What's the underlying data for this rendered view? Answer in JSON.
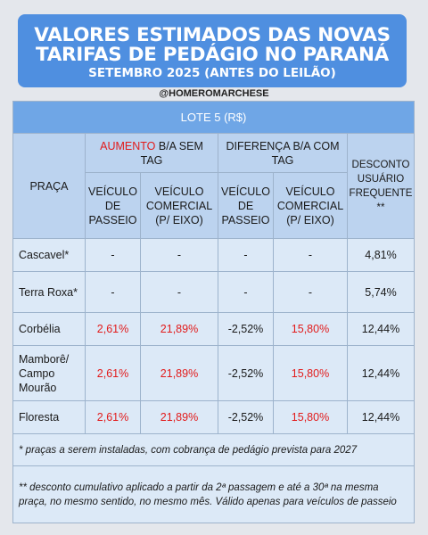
{
  "banner": {
    "line1": "VALORES ESTIMADOS DAS NOVAS",
    "line2": "TARIFAS DE PEDÁGIO NO PARANÁ",
    "line3": "SETEMBRO 2025 (ANTES DO LEILÃO)"
  },
  "handle": "@HOMEROMARCHESE",
  "table": {
    "lote": "LOTE 5 (R$)",
    "praca": "PRAÇA",
    "aumento_red": "AUMENTO",
    "aumento_rest": " B/A SEM TAG",
    "diferenca": "DIFERENÇA B/A COM TAG",
    "desconto": "DESCONTO USUÁRIO FREQUENTE **",
    "veic_passeio": "VEÍCULO DE PASSEIO",
    "veic_comercial": "VEÍCULO COMERCIAL (P/ EIXO)",
    "rows": [
      {
        "praca": "Cascavel*",
        "a1": "-",
        "a2": "-",
        "d1": "-",
        "d2": "-",
        "desc": "4,81%"
      },
      {
        "praca": "Terra Roxa*",
        "a1": "-",
        "a2": "-",
        "d1": "-",
        "d2": "-",
        "desc": "5,74%"
      },
      {
        "praca": "Corbélia",
        "a1": "2,61%",
        "a2": "21,89%",
        "d1": "-2,52%",
        "d2": "15,80%",
        "desc": "12,44%"
      },
      {
        "praca": "Mamborê/ Campo Mourão",
        "a1": "2,61%",
        "a2": "21,89%",
        "d1": "-2,52%",
        "d2": "15,80%",
        "desc": "12,44%"
      },
      {
        "praca": "Floresta",
        "a1": "2,61%",
        "a2": "21,89%",
        "d1": "-2,52%",
        "d2": "15,80%",
        "desc": "12,44%"
      }
    ],
    "note1": "* praças a serem instaladas, com cobrança de pedágio prevista para 2027",
    "note2": "** desconto cumulativo aplicado a partir da 2ª passagem e até a 30ª na mesma praça, no mesmo sentido, no mesmo mês. Válido apenas para veículos de passeio"
  },
  "colors": {
    "banner": "#4f8fe0",
    "lote_header": "#6fa6e6",
    "header": "#bcd3ef",
    "body": "#dce9f7",
    "highlight_red": "#e21b1b"
  }
}
